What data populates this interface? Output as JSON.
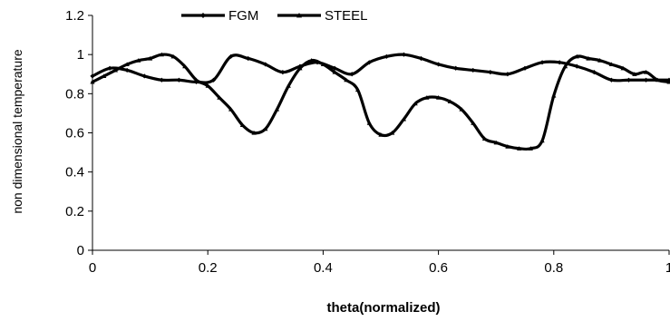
{
  "chart_data": {
    "type": "line",
    "xlabel": "theta(normalized)",
    "ylabel": "non dimensional temperature",
    "xlim": [
      0,
      1
    ],
    "ylim": [
      0,
      1.2
    ],
    "x_ticks": [
      "0",
      "0.2",
      "0.4",
      "0.6",
      "0.8",
      "1"
    ],
    "y_ticks": [
      "0",
      "0.2",
      "0.4",
      "0.6",
      "0.8",
      "1",
      "1.2"
    ],
    "grid": false,
    "legend_position": "top",
    "series": [
      {
        "name": "FGM",
        "marker": "diamond",
        "color": "#000000",
        "x": [
          0,
          0.03,
          0.06,
          0.09,
          0.12,
          0.15,
          0.18,
          0.21,
          0.24,
          0.27,
          0.3,
          0.33,
          0.36,
          0.39,
          0.42,
          0.45,
          0.48,
          0.51,
          0.54,
          0.57,
          0.6,
          0.63,
          0.66,
          0.69,
          0.72,
          0.75,
          0.78,
          0.81,
          0.84,
          0.87,
          0.9,
          0.93,
          0.96,
          1.0
        ],
        "y": [
          0.89,
          0.93,
          0.92,
          0.89,
          0.87,
          0.87,
          0.86,
          0.87,
          0.99,
          0.98,
          0.95,
          0.91,
          0.94,
          0.96,
          0.93,
          0.9,
          0.96,
          0.99,
          1.0,
          0.98,
          0.95,
          0.93,
          0.92,
          0.91,
          0.9,
          0.93,
          0.96,
          0.96,
          0.94,
          0.91,
          0.87,
          0.87,
          0.87,
          0.87
        ]
      },
      {
        "name": "STEEL",
        "marker": "triangle",
        "color": "#000000",
        "x": [
          0,
          0.02,
          0.04,
          0.06,
          0.08,
          0.1,
          0.12,
          0.14,
          0.16,
          0.18,
          0.2,
          0.22,
          0.24,
          0.26,
          0.28,
          0.3,
          0.32,
          0.34,
          0.36,
          0.38,
          0.4,
          0.42,
          0.44,
          0.46,
          0.48,
          0.5,
          0.52,
          0.54,
          0.56,
          0.58,
          0.6,
          0.62,
          0.64,
          0.66,
          0.68,
          0.7,
          0.72,
          0.74,
          0.76,
          0.78,
          0.8,
          0.82,
          0.84,
          0.86,
          0.88,
          0.9,
          0.92,
          0.94,
          0.96,
          0.98,
          1.0
        ],
        "y": [
          0.86,
          0.89,
          0.92,
          0.95,
          0.97,
          0.98,
          1.0,
          0.99,
          0.94,
          0.87,
          0.84,
          0.78,
          0.72,
          0.64,
          0.6,
          0.62,
          0.72,
          0.84,
          0.93,
          0.97,
          0.95,
          0.91,
          0.87,
          0.82,
          0.65,
          0.59,
          0.6,
          0.67,
          0.75,
          0.78,
          0.78,
          0.76,
          0.72,
          0.65,
          0.57,
          0.55,
          0.53,
          0.52,
          0.52,
          0.56,
          0.79,
          0.94,
          0.99,
          0.98,
          0.97,
          0.95,
          0.93,
          0.9,
          0.91,
          0.87,
          0.86
        ]
      }
    ]
  }
}
